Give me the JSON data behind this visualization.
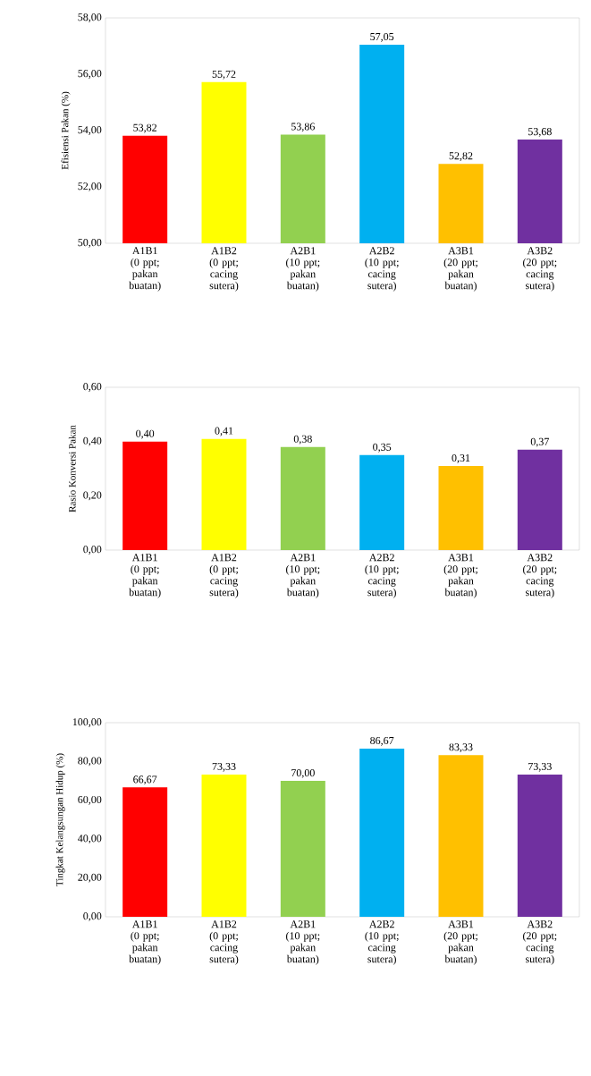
{
  "chart_data": [
    {
      "type": "bar",
      "ylabel": "Efisiensi  Pakan (%)",
      "categories": [
        "A1B1 (0 ppt; pakan buatan)",
        "A1B2 (0 ppt; cacing sutera)",
        "A2B1 (10 ppt; pakan buatan)",
        "A2B2 (10 ppt; cacing sutera)",
        "A3B1 (20 ppt; pakan buatan)",
        "A3B2 (20 ppt; cacing sutera)"
      ],
      "values": [
        53.82,
        55.72,
        53.86,
        57.05,
        52.82,
        53.68
      ],
      "value_labels": [
        "53,82",
        "55,72",
        "53,86",
        "57,05",
        "52,82",
        "53,68"
      ],
      "colors": [
        "#ff0000",
        "#ffff00",
        "#92d050",
        "#00b0f0",
        "#ffc000",
        "#7030a0"
      ],
      "ylim": [
        50,
        58
      ],
      "yticks": [
        {
          "value": 50,
          "label": "50,00"
        },
        {
          "value": 52,
          "label": "52,00"
        },
        {
          "value": 54,
          "label": "54,00"
        },
        {
          "value": 56,
          "label": "56,00"
        },
        {
          "value": 58,
          "label": "58,00"
        }
      ]
    },
    {
      "type": "bar",
      "ylabel": "Rasio  Konversi  Pakan",
      "categories": [
        "A1B1 (0 ppt; pakan buatan)",
        "A1B2 (0 ppt; cacing sutera)",
        "A2B1 (10 ppt; pakan buatan)",
        "A2B2 (10 ppt; cacing sutera)",
        "A3B1 (20 ppt; pakan buatan)",
        "A3B2 (20 ppt; cacing sutera)"
      ],
      "values": [
        0.4,
        0.41,
        0.38,
        0.35,
        0.31,
        0.37
      ],
      "value_labels": [
        "0,40",
        "0,41",
        "0,38",
        "0,35",
        "0,31",
        "0,37"
      ],
      "colors": [
        "#ff0000",
        "#ffff00",
        "#92d050",
        "#00b0f0",
        "#ffc000",
        "#7030a0"
      ],
      "ylim": [
        0,
        0.6
      ],
      "yticks": [
        {
          "value": 0,
          "label": "0,00"
        },
        {
          "value": 0.2,
          "label": "0,20"
        },
        {
          "value": 0.4,
          "label": "0,40"
        },
        {
          "value": 0.6,
          "label": "0,60"
        }
      ]
    },
    {
      "type": "bar",
      "ylabel": "Tingkat  Kelangsungan  Hidup  (%)",
      "categories": [
        "A1B1 (0 ppt; pakan buatan)",
        "A1B2 (0 ppt; cacing sutera)",
        "A2B1 (10 ppt; pakan buatan)",
        "A2B2 (10 ppt; cacing sutera)",
        "A3B1 (20 ppt; pakan buatan)",
        "A3B2 (20 ppt; cacing sutera)"
      ],
      "values": [
        66.67,
        73.33,
        70.0,
        86.67,
        83.33,
        73.33
      ],
      "value_labels": [
        "66,67",
        "73,33",
        "70,00",
        "86,67",
        "83,33",
        "73,33"
      ],
      "colors": [
        "#ff0000",
        "#ffff00",
        "#92d050",
        "#00b0f0",
        "#ffc000",
        "#7030a0"
      ],
      "ylim": [
        0,
        100
      ],
      "yticks": [
        {
          "value": 0,
          "label": "0,00"
        },
        {
          "value": 20,
          "label": "20,00"
        },
        {
          "value": 40,
          "label": "40,00"
        },
        {
          "value": 60,
          "label": "60,00"
        },
        {
          "value": 80,
          "label": "80,00"
        },
        {
          "value": 100,
          "label": "100,00"
        }
      ]
    }
  ]
}
